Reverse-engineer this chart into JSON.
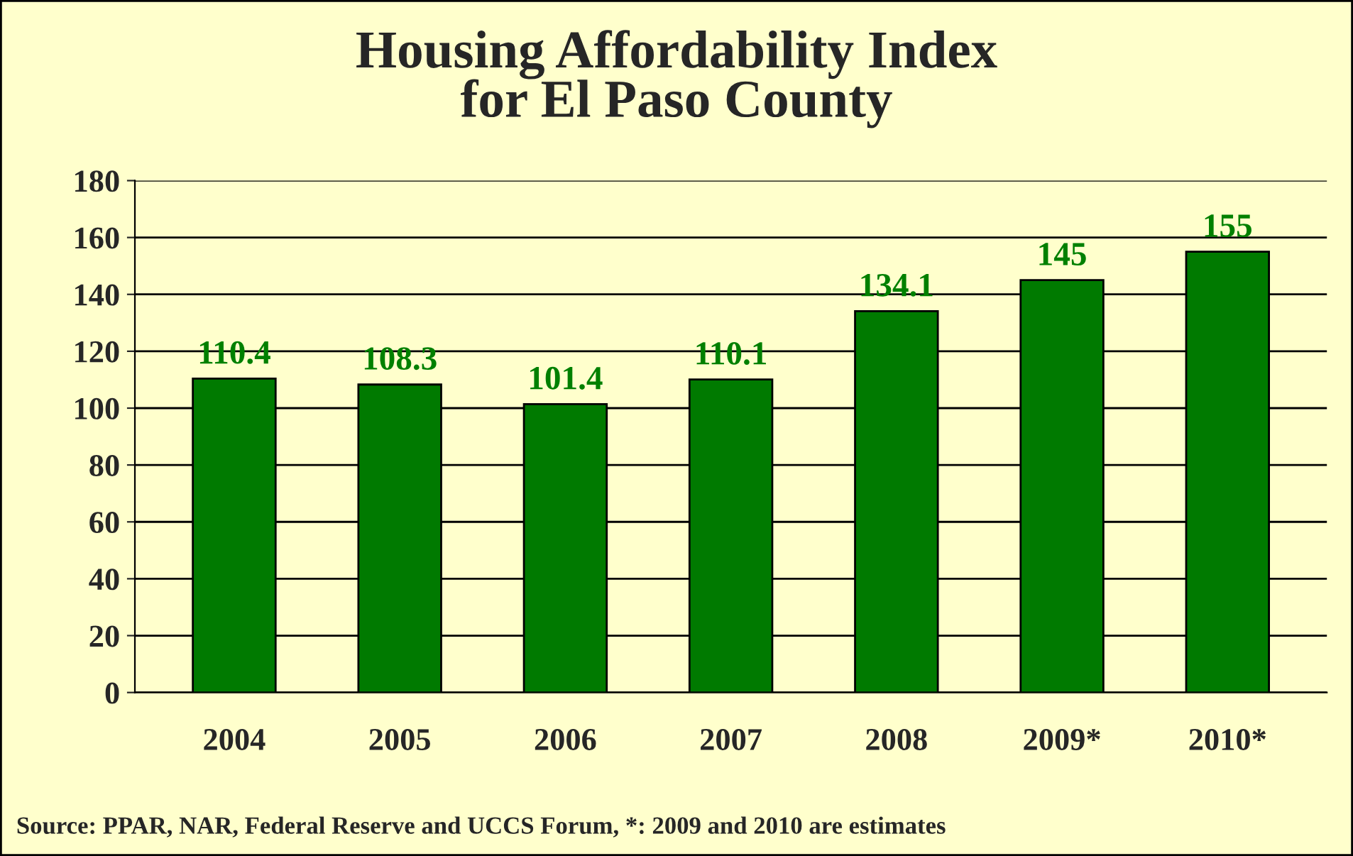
{
  "chart_data": {
    "type": "bar",
    "title": "Housing Affordability Index\nfor El Paso County",
    "categories": [
      "2004",
      "2005",
      "2006",
      "2007",
      "2008",
      "2009*",
      "2010*"
    ],
    "values": [
      110.4,
      108.3,
      101.4,
      110.1,
      134.1,
      145,
      155
    ],
    "color": "#007a00",
    "data_labels": true,
    "ylim": [
      0,
      180
    ],
    "yticks": [
      0,
      20,
      40,
      60,
      80,
      100,
      120,
      140,
      160,
      180
    ],
    "grid": "y",
    "legend": false,
    "annotations": [
      "Source: PPAR, NAR, Federal Reserve and UCCS Forum, *: 2009 and 2010 are estimates"
    ]
  }
}
